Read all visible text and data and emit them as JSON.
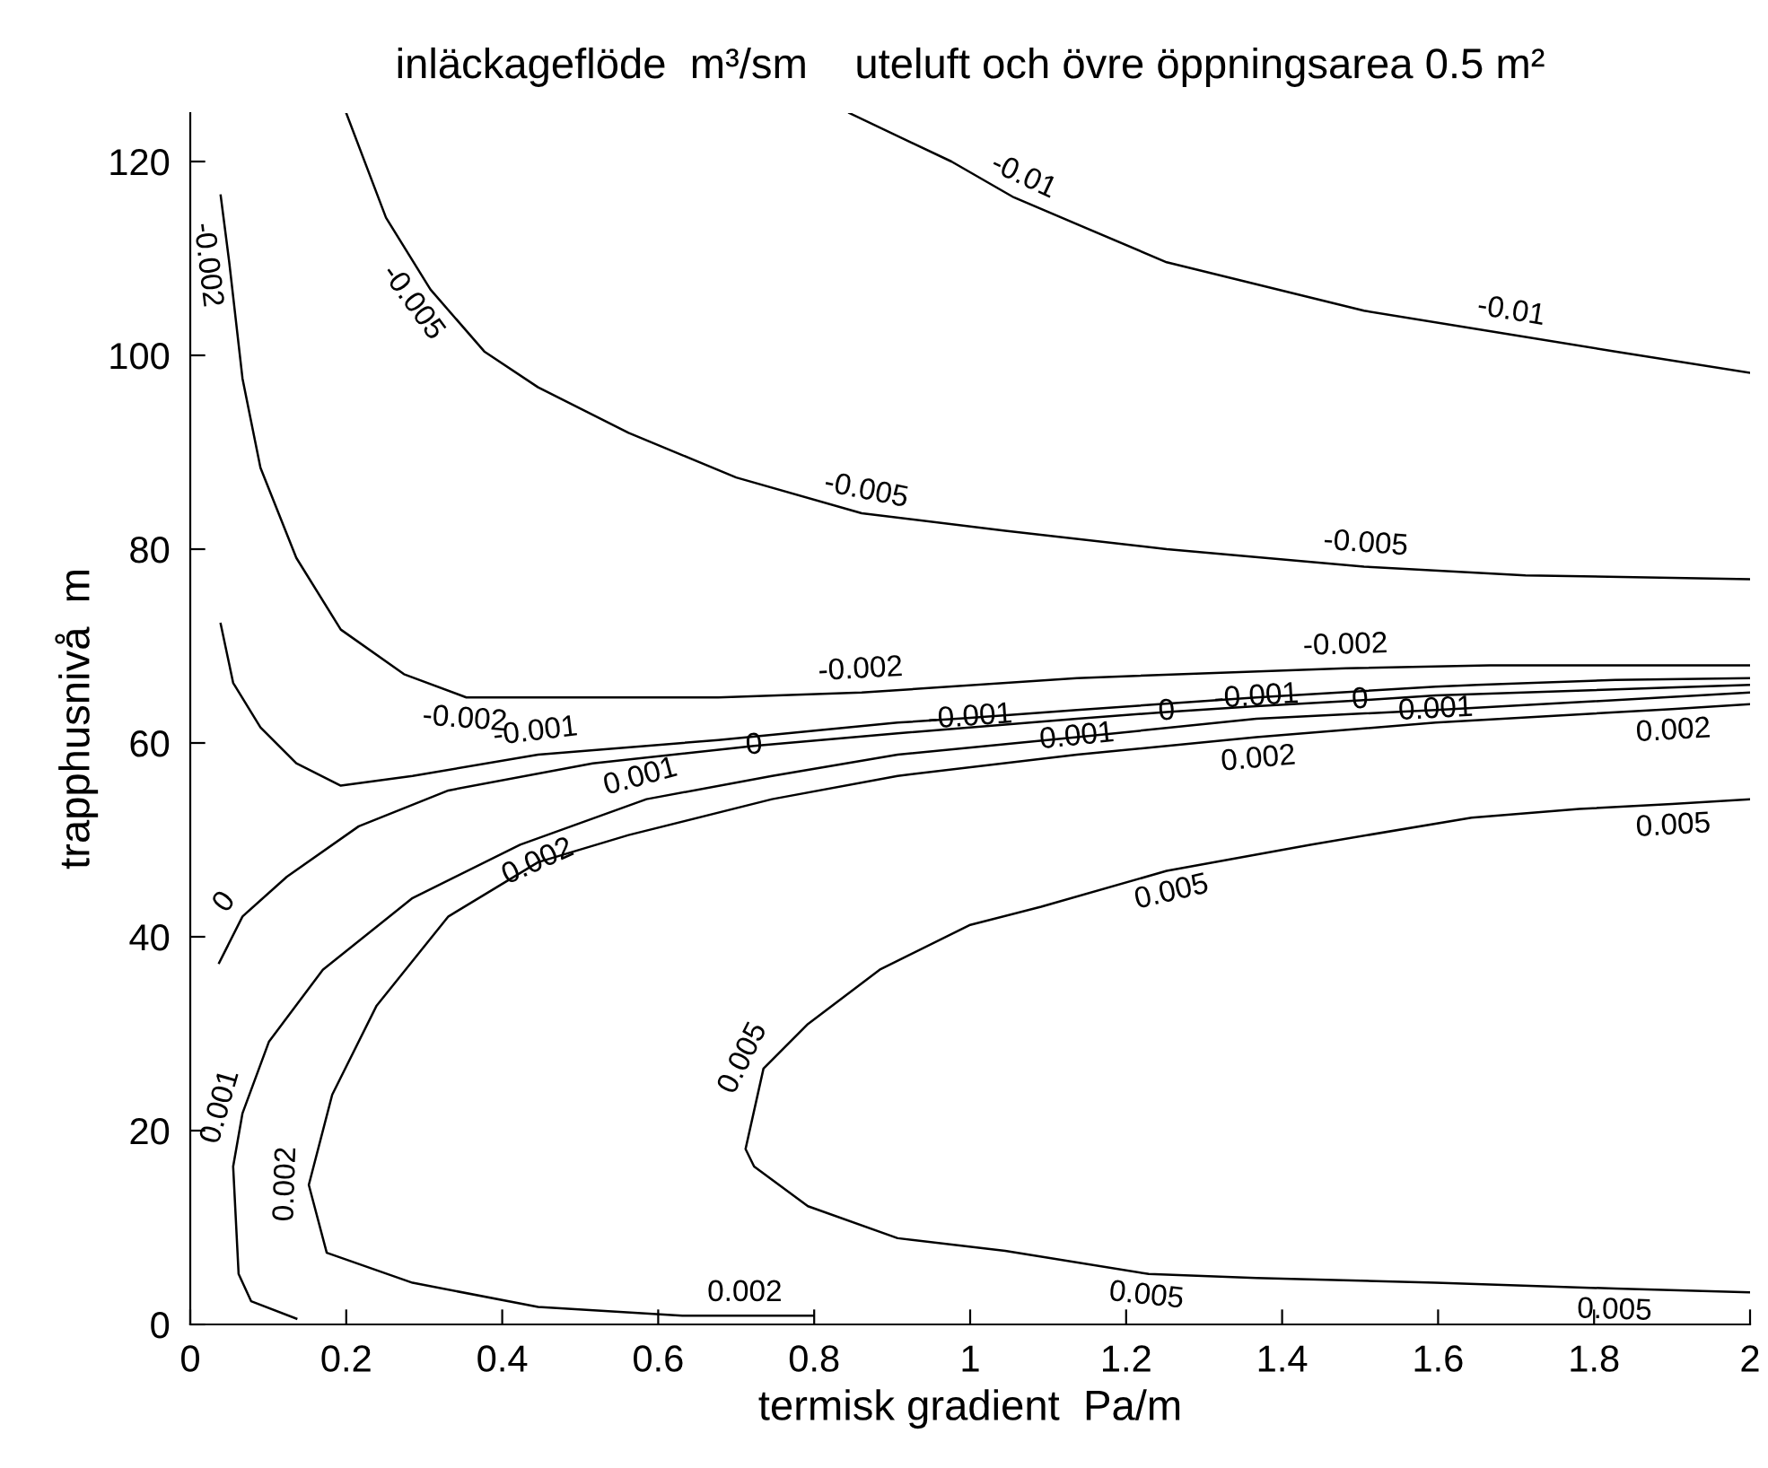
{
  "chart_data": {
    "type": "line",
    "title": "inläckageflöde  m³/sm    uteluft och övre öppningsarea 0.5 m²",
    "xlabel": "termisk gradient  Pa/m",
    "ylabel": "trapphusnivå  m",
    "xlim": [
      0,
      2
    ],
    "xticks": [
      0,
      0.2,
      0.4,
      0.6,
      0.8,
      1,
      1.2,
      1.4,
      1.6,
      1.8,
      2
    ],
    "ylim": [
      0,
      125
    ],
    "yticks": [
      0,
      20,
      40,
      60,
      80,
      100,
      120
    ],
    "grid": false,
    "legend": false,
    "marker": "none",
    "line_style": "solid",
    "series": [
      {
        "color": "#000000",
        "x": [
          0.845,
          0.976,
          1.056,
          1.252,
          1.505,
          1.689,
          1.827,
          2
        ],
        "values": [
          125,
          120,
          116.3,
          109.6,
          104.6,
          102.2,
          100.4,
          98.2
        ]
      },
      {
        "color": "#000000",
        "x": [
          0.2,
          0.251,
          0.308,
          0.377,
          0.446,
          0.562,
          0.7,
          0.861,
          1.045,
          1.252,
          1.505,
          1.712,
          2
        ],
        "values": [
          125,
          114.2,
          106.8,
          100.4,
          96.7,
          92,
          87.4,
          83.7,
          81.9,
          80,
          78.2,
          77.3,
          76.9
        ]
      },
      {
        "color": "#000000",
        "x": [
          0.039,
          0.05,
          0.067,
          0.09,
          0.136,
          0.193,
          0.274,
          0.354,
          0.677,
          0.861,
          1.137,
          1.482,
          1.666,
          2
        ],
        "values": [
          116.5,
          109.6,
          97.6,
          88.4,
          79.1,
          71.7,
          67.1,
          64.7,
          64.7,
          65.2,
          66.7,
          67.7,
          68,
          68
        ]
      },
      {
        "color": "#000000",
        "x": [
          0.039,
          0.055,
          0.09,
          0.136,
          0.193,
          0.285,
          0.446,
          0.677,
          0.907,
          1.0,
          1.137,
          1.367,
          1.597,
          1.65,
          1.827,
          2
        ],
        "values": [
          72.3,
          66.2,
          61.6,
          57.9,
          55.6,
          56.6,
          58.8,
          60.3,
          62.1,
          62.6,
          63.4,
          64.7,
          65.8,
          66,
          66.5,
          66.7
        ]
      },
      {
        "color": "#000000",
        "x": [
          0.037,
          0.067,
          0.124,
          0.216,
          0.331,
          0.516,
          0.723,
          0.907,
          1.137,
          1.252,
          1.367,
          1.5,
          1.597,
          2
        ],
        "values": [
          37.3,
          42.1,
          46.2,
          51.4,
          55.1,
          57.9,
          59.7,
          61,
          62.5,
          63.2,
          63.8,
          64.4,
          64.9,
          66
        ]
      },
      {
        "color": "#000000",
        "x": [
          0.136,
          0.078,
          0.062,
          0.055,
          0.067,
          0.101,
          0.17,
          0.285,
          0.423,
          0.585,
          0.746,
          0.907,
          1.137,
          1.367,
          1.597,
          1.8,
          2
        ],
        "values": [
          0.6,
          2.4,
          5.2,
          16.3,
          21.8,
          29.2,
          36.6,
          44,
          49.5,
          54.2,
          56.6,
          58.8,
          60.6,
          62.5,
          63.4,
          64.3,
          65.2
        ]
      },
      {
        "color": "#000000",
        "x": [
          0.799,
          0.711,
          0.631,
          0.446,
          0.285,
          0.175,
          0.152,
          0.182,
          0.239,
          0.331,
          0.446,
          0.562,
          0.746,
          0.907,
          1.137,
          1.367,
          1.597,
          1.9,
          2
        ],
        "values": [
          0.9,
          0.9,
          0.9,
          1.8,
          4.3,
          7.4,
          14.4,
          23.7,
          32.9,
          42.1,
          47.7,
          50.5,
          54.2,
          56.6,
          58.8,
          60.6,
          62.1,
          63.5,
          64
        ]
      },
      {
        "color": "#000000",
        "x": [
          2,
          1.827,
          1.597,
          1.367,
          1.229,
          1.045,
          0.907,
          0.792,
          0.723,
          0.712,
          0.735,
          0.792,
          0.884,
          0.999,
          1.091,
          1.252,
          1.436,
          1.643,
          1.781,
          1.9,
          2
        ],
        "values": [
          3.3,
          3.7,
          4.3,
          4.8,
          5.2,
          7.6,
          8.9,
          12.2,
          16.3,
          18.1,
          26.4,
          31,
          36.6,
          41.2,
          43.1,
          46.8,
          49.5,
          52.3,
          53.2,
          53.7,
          54.2
        ]
      }
    ],
    "annotations": [
      {
        "text": "-0.01",
        "x": 1.056,
        "y": 116.3
      },
      {
        "text": "-0.01",
        "x": 1.689,
        "y": 102.2
      },
      {
        "text": "-0.005",
        "x": 0.308,
        "y": 106.8
      },
      {
        "text": "-0.005",
        "x": 0.861,
        "y": 83.7
      },
      {
        "text": "-0.005",
        "x": 1.505,
        "y": 78.2
      },
      {
        "text": "-0.002",
        "x": 0.05,
        "y": 109.6
      },
      {
        "text": "-0.002",
        "x": 0.354,
        "y": 64.7
      },
      {
        "text": "-0.002",
        "x": 0.861,
        "y": 65.2
      },
      {
        "text": "-0.002",
        "x": 1.482,
        "y": 67.7
      },
      {
        "text": "-0.001",
        "x": 0.446,
        "y": 58.8
      },
      {
        "text": "-0.001",
        "x": 1.0,
        "y": 62.6
      },
      {
        "text": "-0.001",
        "x": 1.367,
        "y": 64.7
      },
      {
        "text": "0",
        "x": 0.067,
        "y": 42.1
      },
      {
        "text": "0",
        "x": 0.723,
        "y": 59.7
      },
      {
        "text": "0",
        "x": 1.252,
        "y": 63.2
      },
      {
        "text": "0",
        "x": 1.5,
        "y": 64.4
      },
      {
        "text": "0.001",
        "x": 0.067,
        "y": 21.8
      },
      {
        "text": "0.001",
        "x": 0.585,
        "y": 54.2
      },
      {
        "text": "0.001",
        "x": 1.137,
        "y": 60.6
      },
      {
        "text": "0.001",
        "x": 1.597,
        "y": 63.4
      },
      {
        "text": "0.002",
        "x": 0.152,
        "y": 14.4
      },
      {
        "text": "0.002",
        "x": 0.446,
        "y": 47.7
      },
      {
        "text": "0.002",
        "x": 1.367,
        "y": 60.6
      },
      {
        "text": "0.002",
        "x": 1.9,
        "y": 63.5
      },
      {
        "text": "0.002",
        "x": 0.711,
        "y": 0.9
      },
      {
        "text": "0.005",
        "x": 0.735,
        "y": 26.4
      },
      {
        "text": "0.005",
        "x": 1.252,
        "y": 46.8
      },
      {
        "text": "0.005",
        "x": 1.9,
        "y": 53.7
      },
      {
        "text": "0.005",
        "x": 1.229,
        "y": 5.2
      },
      {
        "text": "0.005",
        "x": 1.827,
        "y": 3.7
      }
    ]
  }
}
